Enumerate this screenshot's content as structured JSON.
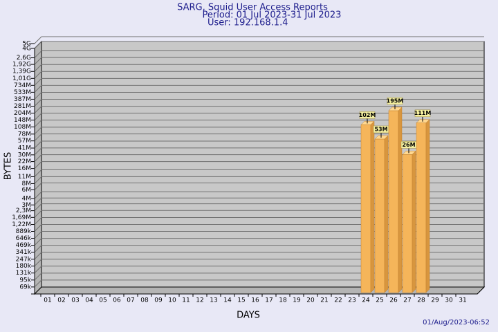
{
  "chart_data": {
    "type": "bar",
    "title": "SARG, Squid User Access Reports",
    "subtitle": "Period: 01 Jul 2023-31 Jul 2023",
    "user": "User: 192.168.1.4",
    "x_label": "DAYS",
    "y_label": "BYTES",
    "footer": "01/Aug/2023-06:52",
    "log_scale": true,
    "grid": true,
    "color": "#f5b55a",
    "categories": [
      "01",
      "02",
      "03",
      "04",
      "05",
      "06",
      "07",
      "08",
      "09",
      "10",
      "11",
      "12",
      "13",
      "14",
      "15",
      "16",
      "17",
      "18",
      "19",
      "20",
      "21",
      "22",
      "23",
      "24",
      "25",
      "26",
      "27",
      "28",
      "29",
      "30",
      "31"
    ],
    "values": [
      null,
      null,
      null,
      null,
      null,
      null,
      null,
      null,
      null,
      null,
      null,
      null,
      null,
      null,
      null,
      null,
      null,
      null,
      null,
      null,
      null,
      null,
      null,
      102000000,
      53000000,
      195000000,
      26000000,
      111000000,
      null,
      null,
      null
    ],
    "value_labels": [
      null,
      null,
      null,
      null,
      null,
      null,
      null,
      null,
      null,
      null,
      null,
      null,
      null,
      null,
      null,
      null,
      null,
      null,
      null,
      null,
      null,
      null,
      null,
      "102M",
      "53M",
      "195M",
      "26M",
      "111M",
      null,
      null,
      null
    ],
    "ylim": [
      50000,
      5500000000
    ],
    "yticks": [
      {
        "value": 69000,
        "label": "69k"
      },
      {
        "value": 95000,
        "label": "95k"
      },
      {
        "value": 131000,
        "label": "131k"
      },
      {
        "value": 180000,
        "label": "180k"
      },
      {
        "value": 247000,
        "label": "247k"
      },
      {
        "value": 341000,
        "label": "341k"
      },
      {
        "value": 469000,
        "label": "469k"
      },
      {
        "value": 646000,
        "label": "646k"
      },
      {
        "value": 889000,
        "label": "889k"
      },
      {
        "value": 1220000,
        "label": "1,22M"
      },
      {
        "value": 1690000,
        "label": "1,69M"
      },
      {
        "value": 2300000,
        "label": "2,3M"
      },
      {
        "value": 3000000,
        "label": "3M"
      },
      {
        "value": 4000000,
        "label": "4M"
      },
      {
        "value": 6000000,
        "label": "6M"
      },
      {
        "value": 8000000,
        "label": "8M"
      },
      {
        "value": 11000000,
        "label": "11M"
      },
      {
        "value": 16000000,
        "label": "16M"
      },
      {
        "value": 22000000,
        "label": "22M"
      },
      {
        "value": 30000000,
        "label": "30M"
      },
      {
        "value": 41000000,
        "label": "41M"
      },
      {
        "value": 57000000,
        "label": "57M"
      },
      {
        "value": 78000000,
        "label": "78M"
      },
      {
        "value": 108000000,
        "label": "108M"
      },
      {
        "value": 148000000,
        "label": "148M"
      },
      {
        "value": 204000000,
        "label": "204M"
      },
      {
        "value": 281000000,
        "label": "281M"
      },
      {
        "value": 387000000,
        "label": "387M"
      },
      {
        "value": 533000000,
        "label": "533M"
      },
      {
        "value": 734000000,
        "label": "734M"
      },
      {
        "value": 1010000000,
        "label": "1,01G"
      },
      {
        "value": 1390000000,
        "label": "1,39G"
      },
      {
        "value": 1920000000,
        "label": "1,92G"
      },
      {
        "value": 2600000000,
        "label": "2,6G"
      },
      {
        "value": 4000000000,
        "label": "4G"
      },
      {
        "value": 5000000000,
        "label": "5G"
      }
    ]
  }
}
